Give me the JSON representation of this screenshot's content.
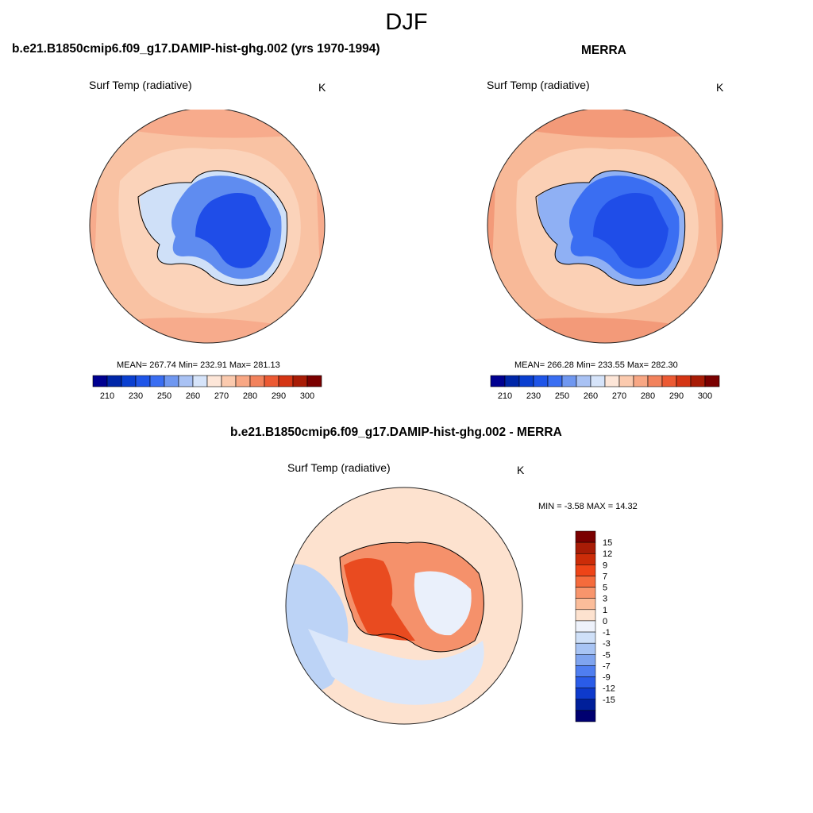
{
  "figure": {
    "season": "DJF"
  },
  "chart_data": [
    {
      "type": "heatmap",
      "projection": "south-polar-stereographic",
      "title": "b.e21.B1850cmip6.f09_g17.DAMIP-hist-ghg.002 (yrs 1970-1994)",
      "variable": "Surf Temp (radiative)",
      "units": "K",
      "stats": "MEAN= 267.74  Min= 232.91  Max= 281.13",
      "mean": 267.74,
      "min": 232.91,
      "max": 281.13,
      "levels": [
        210,
        220,
        230,
        240,
        250,
        255,
        260,
        265,
        270,
        275,
        280,
        285,
        290,
        295,
        300
      ],
      "tick_labels": [
        "210",
        "230",
        "250",
        "260",
        "270",
        "280",
        "290",
        "300"
      ],
      "colors": [
        "#000090",
        "#0026a8",
        "#0a3fd0",
        "#1f55e8",
        "#3a6ef2",
        "#6f97f0",
        "#a9c2f4",
        "#d6e4fa",
        "#fde6d8",
        "#fbcaae",
        "#f8a784",
        "#f2825c",
        "#ec5a33",
        "#d43514",
        "#a81c06",
        "#7a0000"
      ]
    },
    {
      "type": "heatmap",
      "projection": "south-polar-stereographic",
      "title": "MERRA",
      "variable": "Surf Temp (radiative)",
      "units": "K",
      "stats": "MEAN= 266.28  Min= 233.55  Max= 282.30",
      "mean": 266.28,
      "min": 233.55,
      "max": 282.3,
      "levels": [
        210,
        220,
        230,
        240,
        250,
        255,
        260,
        265,
        270,
        275,
        280,
        285,
        290,
        295,
        300
      ],
      "tick_labels": [
        "210",
        "230",
        "250",
        "260",
        "270",
        "280",
        "290",
        "300"
      ],
      "colors": [
        "#000090",
        "#0026a8",
        "#0a3fd0",
        "#1f55e8",
        "#3a6ef2",
        "#6f97f0",
        "#a9c2f4",
        "#d6e4fa",
        "#fde6d8",
        "#fbcaae",
        "#f8a784",
        "#f2825c",
        "#ec5a33",
        "#d43514",
        "#a81c06",
        "#7a0000"
      ]
    },
    {
      "type": "heatmap",
      "projection": "south-polar-stereographic",
      "title": "b.e21.B1850cmip6.f09_g17.DAMIP-hist-ghg.002 - MERRA",
      "variable": "Surf Temp (radiative)",
      "units": "K",
      "stats": "MIN =  -3.58 MAX =  14.32",
      "min": -3.58,
      "max": 14.32,
      "levels": [
        15,
        12,
        9,
        7,
        5,
        3,
        1,
        0,
        -1,
        -3,
        -5,
        -7,
        -9,
        -12,
        -15
      ],
      "tick_labels": [
        "15",
        "12",
        "9",
        "7",
        "5",
        "3",
        "1",
        "0",
        "-1",
        "-3",
        "-5",
        "-7",
        "-9",
        "-12",
        "-15"
      ],
      "colors": [
        "#7a0000",
        "#a81c06",
        "#cc2c08",
        "#ee4417",
        "#f56b3c",
        "#f8956c",
        "#fbbd9a",
        "#fde2cf",
        "#eef2fb",
        "#cfe0f8",
        "#a8c4f4",
        "#7fa4ef",
        "#4f7ef0",
        "#2a5ce8",
        "#0e3acc",
        "#001f9a",
        "#000070"
      ]
    }
  ]
}
